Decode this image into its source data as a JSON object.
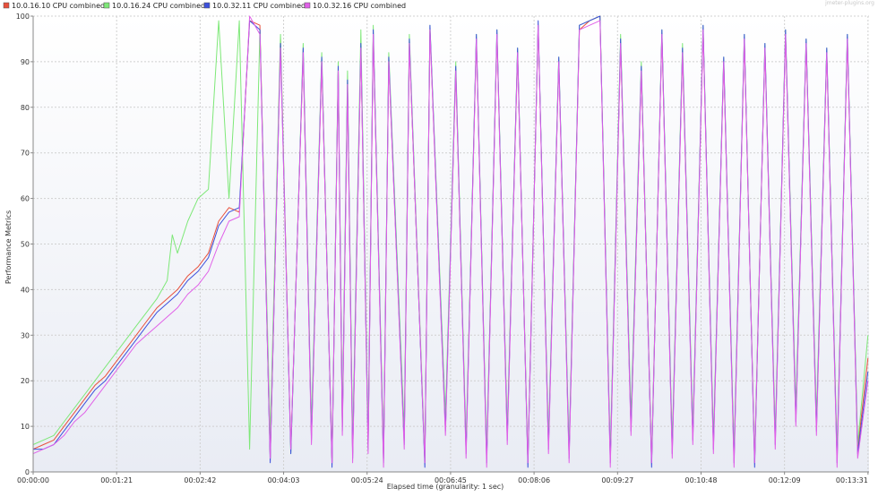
{
  "chart_data": {
    "type": "line",
    "title": "",
    "xlabel": "Elapsed time (granularity: 1 sec)",
    "ylabel": "Performance Metrics",
    "watermark": "jmeter-plugins.org",
    "xlim": [
      0,
      811
    ],
    "ylim": [
      0,
      100
    ],
    "y_ticks": [
      0,
      10,
      20,
      30,
      40,
      50,
      60,
      70,
      80,
      90,
      100
    ],
    "x_ticks": [
      {
        "t": 0,
        "label": "00:00:00"
      },
      {
        "t": 81,
        "label": "00:01:21"
      },
      {
        "t": 162,
        "label": "00:02:42"
      },
      {
        "t": 243,
        "label": "00:04:03"
      },
      {
        "t": 324,
        "label": "00:05:24"
      },
      {
        "t": 405,
        "label": "00:06:45"
      },
      {
        "t": 486,
        "label": "00:08:06"
      },
      {
        "t": 567,
        "label": "00:09:27"
      },
      {
        "t": 648,
        "label": "00:10:48"
      },
      {
        "t": 729,
        "label": "00:12:09"
      },
      {
        "t": 810,
        "label": "00:13:31"
      }
    ],
    "grid": true,
    "legend_position": "top-left",
    "series": [
      {
        "name": "10.0.16.10 CPU combined",
        "color": "#e8503c",
        "x": [
          0,
          10,
          20,
          30,
          40,
          50,
          60,
          70,
          80,
          90,
          100,
          110,
          120,
          130,
          140,
          150,
          160,
          170,
          180,
          190,
          200,
          210,
          220,
          230,
          240,
          250,
          262,
          270,
          280,
          290,
          296,
          300,
          305,
          310,
          318,
          325,
          330,
          340,
          345,
          360,
          365,
          380,
          385,
          400,
          410,
          420,
          430,
          440,
          450,
          460,
          470,
          480,
          490,
          500,
          510,
          520,
          530,
          540,
          550,
          560,
          570,
          580,
          590,
          600,
          610,
          620,
          630,
          640,
          650,
          660,
          670,
          680,
          690,
          700,
          710,
          720,
          730,
          740,
          750,
          760,
          770,
          780,
          790,
          800,
          810
        ],
        "y": [
          5,
          6,
          7,
          10,
          13,
          16,
          19,
          21,
          24,
          27,
          30,
          33,
          36,
          38,
          40,
          43,
          45,
          48,
          55,
          58,
          57,
          99,
          98,
          3,
          95,
          5,
          92,
          8,
          90,
          2,
          88,
          10,
          85,
          4,
          93,
          6,
          96,
          3,
          90,
          7,
          94,
          2,
          97,
          10,
          88,
          5,
          95,
          3,
          96,
          8,
          92,
          2,
          98,
          6,
          90,
          4,
          97,
          99,
          100,
          3,
          94,
          10,
          88,
          2,
          96,
          5,
          92,
          8,
          97,
          6,
          90,
          3,
          95,
          2,
          93,
          7,
          96,
          12,
          94,
          10,
          92,
          3,
          95,
          5,
          25
        ]
      },
      {
        "name": "10.0.16.24 CPU combined",
        "color": "#7ee878",
        "x": [
          0,
          10,
          20,
          30,
          40,
          50,
          60,
          70,
          80,
          90,
          100,
          110,
          120,
          130,
          135,
          140,
          150,
          160,
          170,
          180,
          190,
          200,
          210,
          220,
          230,
          240,
          250,
          262,
          270,
          280,
          290,
          296,
          300,
          305,
          310,
          318,
          325,
          330,
          340,
          345,
          360,
          365,
          380,
          385,
          400,
          410,
          420,
          430,
          440,
          450,
          460,
          470,
          480,
          490,
          500,
          510,
          520,
          530,
          540,
          550,
          560,
          570,
          580,
          590,
          600,
          610,
          620,
          630,
          640,
          650,
          660,
          670,
          680,
          690,
          700,
          710,
          720,
          730,
          740,
          750,
          760,
          770,
          780,
          790,
          800,
          810
        ],
        "y": [
          6,
          7,
          8,
          11,
          14,
          17,
          20,
          23,
          26,
          29,
          32,
          35,
          38,
          42,
          52,
          48,
          55,
          60,
          62,
          99,
          60,
          99,
          5,
          97,
          8,
          96,
          4,
          94,
          10,
          92,
          3,
          90,
          12,
          88,
          6,
          97,
          8,
          98,
          4,
          92,
          9,
          96,
          3,
          98,
          12,
          90,
          6,
          96,
          4,
          97,
          9,
          93,
          3,
          98,
          7,
          91,
          5,
          98,
          99,
          100,
          4,
          96,
          12,
          90,
          3,
          97,
          6,
          94,
          9,
          98,
          7,
          91,
          4,
          96,
          3,
          94,
          8,
          97,
          14,
          95,
          12,
          93,
          4,
          96,
          6,
          30
        ]
      },
      {
        "name": "10.0.32.11 CPU combined",
        "color": "#3c50dc",
        "x": [
          0,
          10,
          20,
          30,
          40,
          50,
          60,
          70,
          80,
          90,
          100,
          110,
          120,
          130,
          140,
          150,
          160,
          170,
          180,
          190,
          200,
          210,
          220,
          230,
          240,
          250,
          262,
          270,
          280,
          290,
          296,
          300,
          305,
          310,
          318,
          325,
          330,
          340,
          345,
          360,
          365,
          380,
          385,
          400,
          410,
          420,
          430,
          440,
          450,
          460,
          470,
          480,
          490,
          500,
          510,
          520,
          530,
          540,
          550,
          560,
          570,
          580,
          590,
          600,
          610,
          620,
          630,
          640,
          650,
          660,
          670,
          680,
          690,
          700,
          710,
          720,
          730,
          740,
          750,
          760,
          770,
          780,
          790,
          800,
          810
        ],
        "y": [
          5,
          5,
          6,
          9,
          12,
          15,
          18,
          20,
          23,
          26,
          29,
          32,
          35,
          37,
          39,
          42,
          44,
          47,
          54,
          57,
          58,
          99,
          97,
          2,
          94,
          4,
          93,
          7,
          91,
          1,
          89,
          9,
          86,
          3,
          94,
          5,
          97,
          2,
          91,
          6,
          95,
          1,
          98,
          9,
          89,
          4,
          96,
          2,
          97,
          7,
          93,
          1,
          99,
          5,
          91,
          3,
          98,
          99,
          100,
          2,
          95,
          9,
          89,
          1,
          97,
          4,
          93,
          7,
          98,
          5,
          91,
          2,
          96,
          1,
          94,
          6,
          97,
          11,
          95,
          9,
          93,
          2,
          96,
          4,
          22
        ]
      },
      {
        "name": "10.0.32.16 CPU combined",
        "color": "#e060e8",
        "x": [
          0,
          10,
          20,
          30,
          40,
          50,
          60,
          70,
          80,
          90,
          100,
          110,
          120,
          130,
          140,
          150,
          160,
          170,
          180,
          190,
          200,
          210,
          220,
          230,
          240,
          250,
          262,
          270,
          280,
          290,
          296,
          300,
          305,
          310,
          318,
          325,
          330,
          340,
          345,
          360,
          365,
          380,
          385,
          400,
          410,
          420,
          430,
          440,
          450,
          460,
          470,
          480,
          490,
          500,
          510,
          520,
          530,
          540,
          550,
          560,
          570,
          580,
          590,
          600,
          610,
          620,
          630,
          640,
          650,
          660,
          670,
          680,
          690,
          700,
          710,
          720,
          730,
          740,
          750,
          760,
          770,
          780,
          790,
          800,
          810
        ],
        "y": [
          4,
          5,
          6,
          8,
          11,
          13,
          16,
          19,
          22,
          25,
          28,
          30,
          32,
          34,
          36,
          39,
          41,
          44,
          50,
          55,
          56,
          100,
          96,
          3,
          93,
          5,
          92,
          6,
          90,
          2,
          88,
          8,
          85,
          2,
          93,
          4,
          96,
          1,
          90,
          5,
          94,
          2,
          97,
          8,
          88,
          3,
          95,
          1,
          96,
          6,
          92,
          2,
          98,
          4,
          90,
          2,
          97,
          98,
          99,
          1,
          94,
          8,
          88,
          2,
          96,
          3,
          92,
          6,
          97,
          4,
          90,
          1,
          95,
          2,
          93,
          5,
          96,
          10,
          94,
          8,
          92,
          1,
          95,
          3,
          20
        ]
      }
    ]
  }
}
